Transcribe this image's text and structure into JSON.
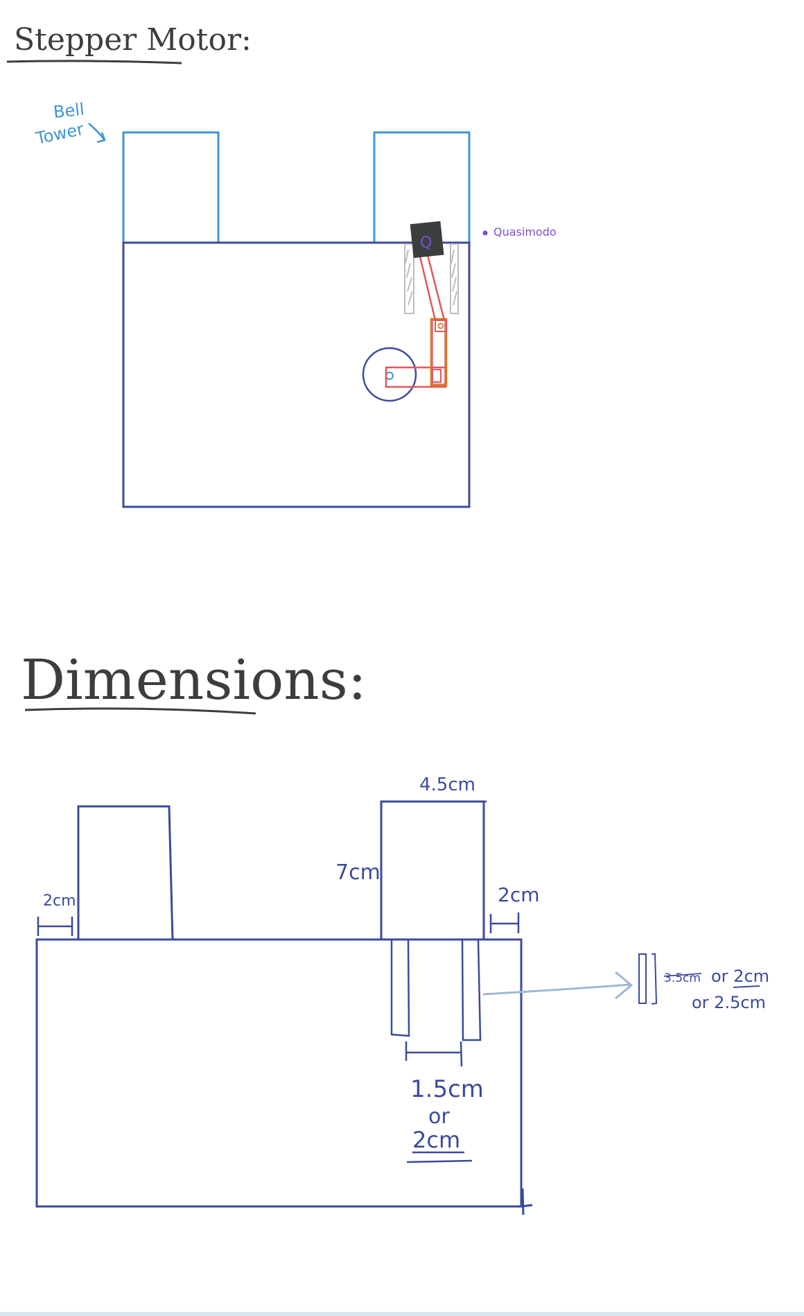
{
  "section1": {
    "title": "Stepper Motor:",
    "bell_tower_label_line1": "Bell",
    "bell_tower_label_line2": "Tower",
    "quasimodo_label": "Quasimodo",
    "quasimodo_initial": "Q"
  },
  "section2": {
    "title": "Dimensions:",
    "left_gap_label": "2cm",
    "tower_height_label": "7cm",
    "tower_width_label": "4.5cm",
    "right_gap_label": "2cm",
    "slot_width_line1": "1.5cm",
    "slot_width_line2": "or",
    "slot_width_line3": "2cm",
    "side_note_struck": "3.5cm",
    "side_note_rest": "or 2cm",
    "side_note_line2": "or 2.5cm"
  },
  "colors": {
    "ink_dark": "#3a3f3e",
    "navy": "#3b4a9c",
    "light_blue": "#3d95d3",
    "purple": "#7a4fd0",
    "red": "#e0585c",
    "orange": "#d7791a",
    "gray": "#bcbcbc",
    "arrow": "#9fb7d6"
  }
}
